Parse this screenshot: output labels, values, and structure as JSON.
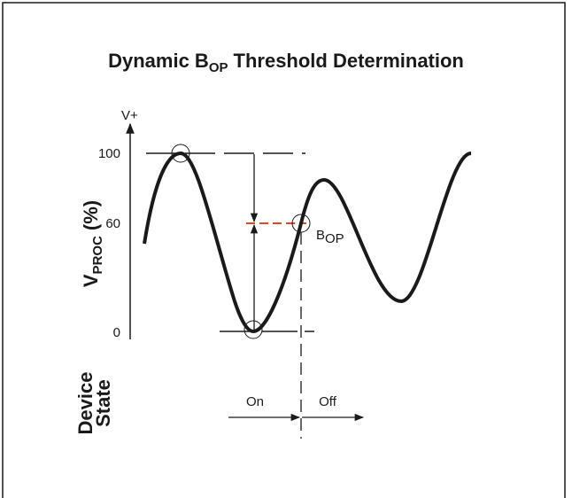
{
  "title": {
    "prefix": "Dynamic B",
    "subscript": "OP",
    "suffix": "Threshold Determination"
  },
  "y_axis": {
    "top_label": "V+",
    "label": {
      "main": "V",
      "subscript": "PROC",
      "suffix": "(%)"
    },
    "ticks": [
      "100",
      "60",
      "0"
    ]
  },
  "annotation": {
    "main": "B",
    "subscript": "OP"
  },
  "device_state": {
    "label_lines": [
      "Device",
      "State"
    ],
    "on": "On",
    "off": "Off"
  }
}
